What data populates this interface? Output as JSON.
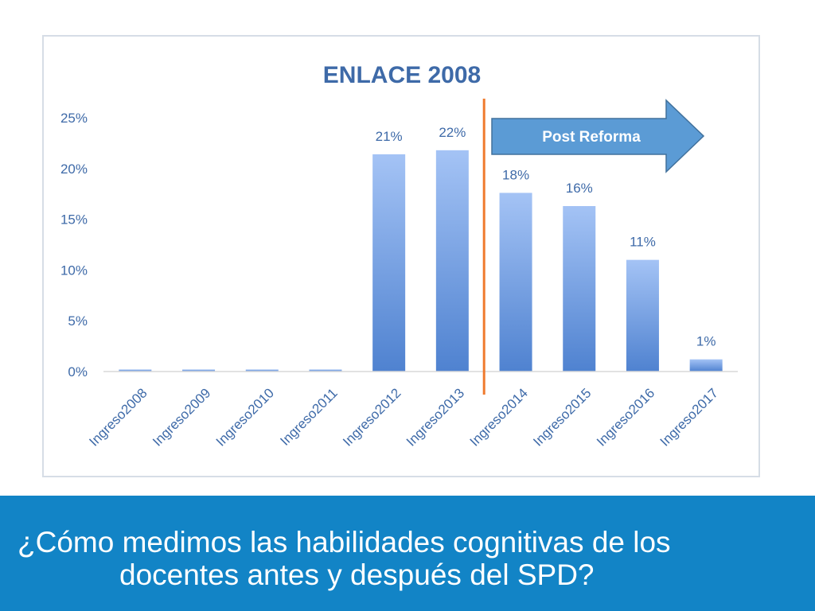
{
  "chart_data": {
    "type": "bar",
    "title": "ENLACE 2008",
    "categories": [
      "Ingreso2008",
      "Ingreso2009",
      "Ingreso2010",
      "Ingreso2011",
      "Ingreso2012",
      "Ingreso2013",
      "Ingreso2014",
      "Ingreso2015",
      "Ingreso2016",
      "Ingreso2017"
    ],
    "values": [
      0.2,
      0.2,
      0.2,
      0.2,
      21.4,
      21.8,
      17.6,
      16.3,
      11.0,
      1.2
    ],
    "data_labels": [
      "",
      "",
      "",
      "",
      "21%",
      "22%",
      "18%",
      "16%",
      "11%",
      "1%"
    ],
    "yticks": [
      "0%",
      "5%",
      "10%",
      "15%",
      "20%",
      "25%"
    ],
    "ylim": [
      0,
      25
    ],
    "xlabel": "",
    "ylabel": "",
    "grid": false,
    "annotation": {
      "text": "Post Reforma",
      "divider_between": [
        "Ingreso2013",
        "Ingreso2014"
      ]
    },
    "colors": {
      "bar_top": "#a4c3f5",
      "bar_bottom": "#4f82d0",
      "divider": "#ef7a2e",
      "arrow_fill": "#5b9bd5",
      "arrow_stroke": "#41719c",
      "title": "#3e6aa8",
      "axis_text": "#3e6aa8"
    }
  },
  "footer": {
    "line1": "¿Cómo medimos las habilidades cognitivas de los",
    "line2": "docentes antes y después del SPD?",
    "background": "#1284c6"
  }
}
